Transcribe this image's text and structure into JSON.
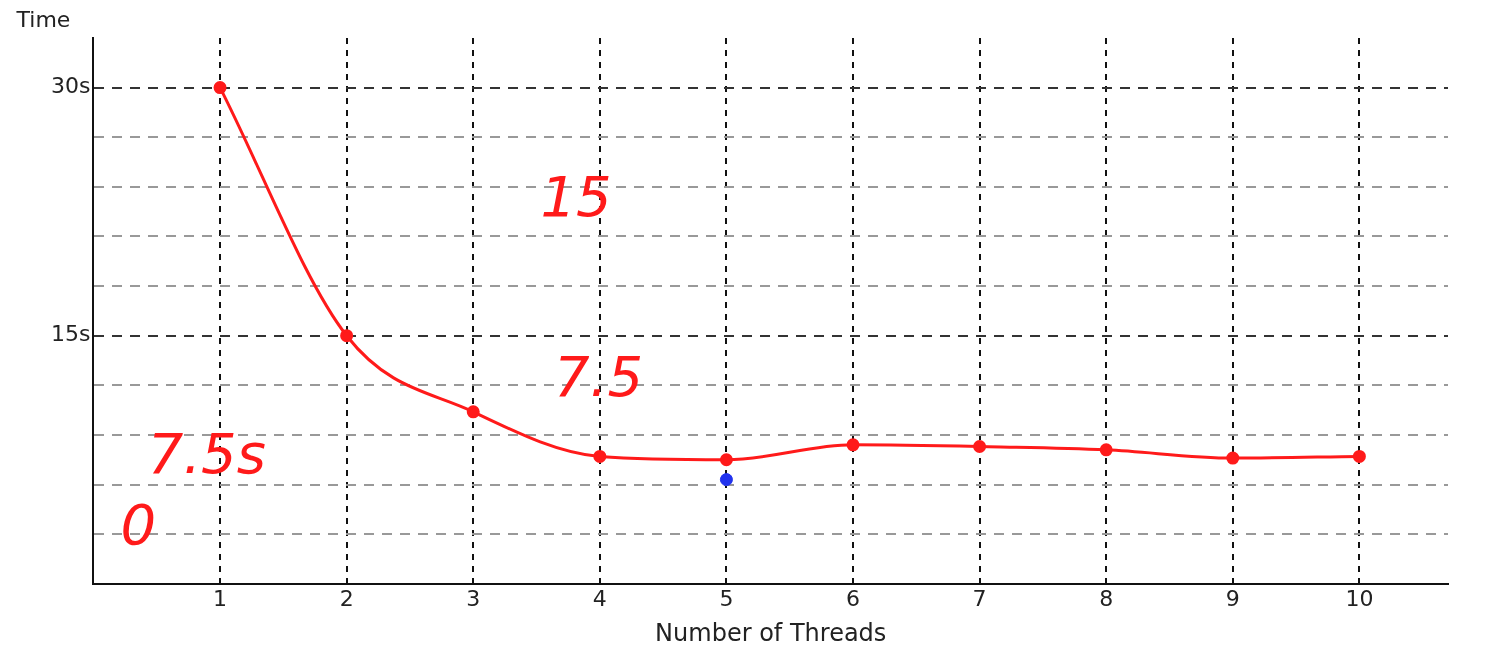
{
  "chart_data": {
    "type": "line",
    "xlabel": "Number of Threads",
    "ylabel": "Time",
    "x": [
      1,
      2,
      3,
      4,
      5,
      6,
      7,
      8,
      9,
      10
    ],
    "series": [
      {
        "color": "#ff1a1a",
        "values": [
          30,
          15,
          10.4,
          7.7,
          7.5,
          8.4,
          8.3,
          8.1,
          7.6,
          7.7
        ]
      },
      {
        "type": "scatter",
        "color": "#2233ee",
        "x": [
          5
        ],
        "values": [
          6.3
        ]
      }
    ],
    "xlim": [
      0,
      10.7
    ],
    "xticks": [
      1,
      2,
      3,
      4,
      5,
      6,
      7,
      8,
      9,
      10
    ],
    "ylim": [
      0,
      33
    ],
    "yticks": [
      {
        "value": 3,
        "label": null
      },
      {
        "value": 6,
        "label": null
      },
      {
        "value": 9,
        "label": null
      },
      {
        "value": 12,
        "label": null
      },
      {
        "value": 15,
        "label": "15s"
      },
      {
        "value": 18,
        "label": null
      },
      {
        "value": 21,
        "label": null
      },
      {
        "value": 24,
        "label": null
      },
      {
        "value": 27,
        "label": null
      },
      {
        "value": 30,
        "label": "30s"
      }
    ],
    "grid": true,
    "marker": "circle",
    "legend": false,
    "annotations": [
      "15",
      "7.5",
      "7.5s",
      "0"
    ]
  }
}
